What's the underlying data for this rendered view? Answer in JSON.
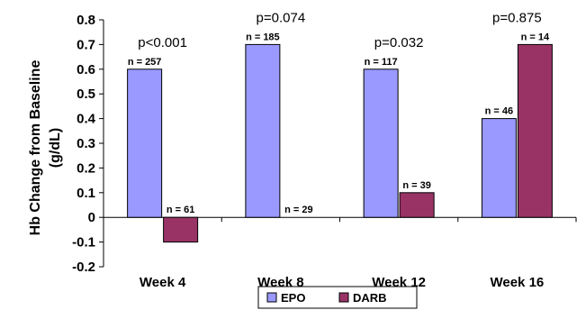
{
  "chart_data": {
    "type": "bar",
    "ylabel": "Hb Change from Baseline (g/dL)",
    "ylabel_lines": [
      "Hb Change from Baseline",
      "(g/dL)"
    ],
    "ylim": [
      -0.2,
      0.8
    ],
    "yticks": [
      -0.2,
      -0.1,
      0,
      0.1,
      0.2,
      0.3,
      0.4,
      0.5,
      0.6,
      0.7,
      0.8
    ],
    "ytick_labels": [
      "-0.2",
      "-0.1",
      "0",
      "0.1",
      "0.2",
      "0.3",
      "0.4",
      "0.5",
      "0.6",
      "0.7",
      "0.8"
    ],
    "categories": [
      "Week 4",
      "Week 8",
      "Week 12",
      "Week 16"
    ],
    "series": [
      {
        "name": "EPO",
        "color": "#9999ff",
        "values": [
          0.6,
          0.7,
          0.6,
          0.4
        ],
        "n_labels": [
          "n = 257",
          "n = 185",
          "n = 117",
          "n = 46"
        ]
      },
      {
        "name": "DARB",
        "color": "#993366",
        "values": [
          -0.1,
          0,
          0.1,
          0.7
        ],
        "n_labels": [
          "n = 61",
          "n = 29",
          "n = 39",
          "n = 14"
        ]
      }
    ],
    "p_values": [
      "p<0.001",
      "p=0.074",
      "p=0.032",
      "p=0.875"
    ],
    "grid": false,
    "legend": "bottom"
  }
}
